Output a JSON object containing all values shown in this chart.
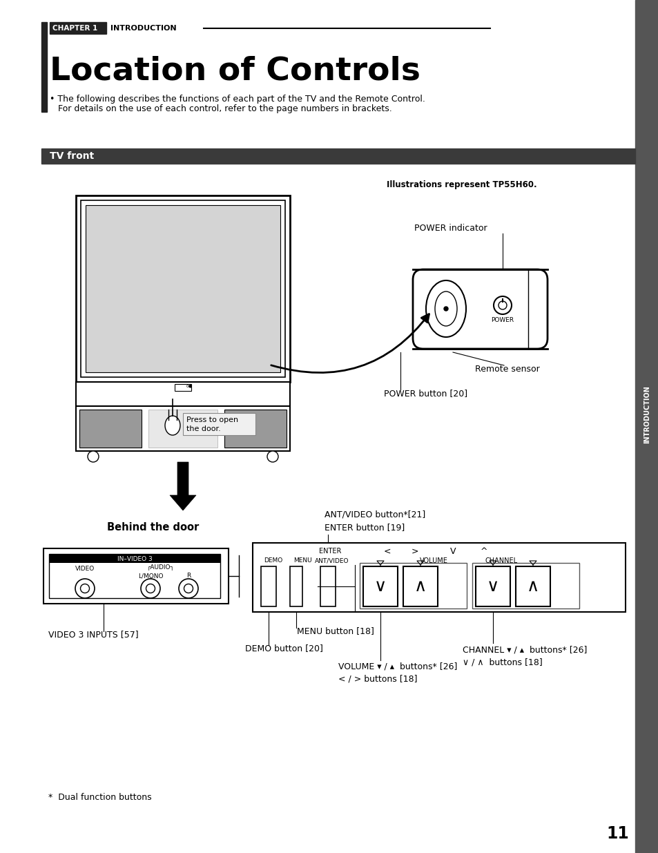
{
  "page_bg": "#ffffff",
  "sidebar_color": "#555555",
  "chapter_box_color": "#333333",
  "chapter_text": "CHAPTER 1",
  "intro_text": "INTRODUCTION",
  "title": "Location of Controls",
  "bullet1": "• The following describes the functions of each part of the TV and the Remote Control.",
  "bullet2": "   For details on the use of each control, refer to the page numbers in brackets.",
  "tv_front_bar_color": "#3a3a3a",
  "tv_front_label": "TV front",
  "illus_note": "Illustrations represent TP55H60.",
  "power_indicator_label": "POWER indicator",
  "remote_sensor_label": "Remote sensor",
  "power_button_label": "POWER button [20]",
  "behind_door_label": "Behind the door",
  "press_to_open": "Press to open\nthe door.",
  "ant_video_label": "ANT/VIDEO button*[21]\nENTER button [19]",
  "menu_label": "MENU button [18]",
  "demo_label": "DEMO button [20]",
  "video3_label": "VIDEO 3 INPUTS [57]",
  "volume_label": "VOLUME ▾ / ▴  buttons* [26]\n< / > buttons [18]",
  "channel_label": "CHANNEL ▾ / ▴  buttons* [26]\n∨ / ∧  buttons [18]",
  "footnote": "*  Dual function buttons",
  "page_number": "11",
  "sidebar_label": "INTRODUCTION"
}
